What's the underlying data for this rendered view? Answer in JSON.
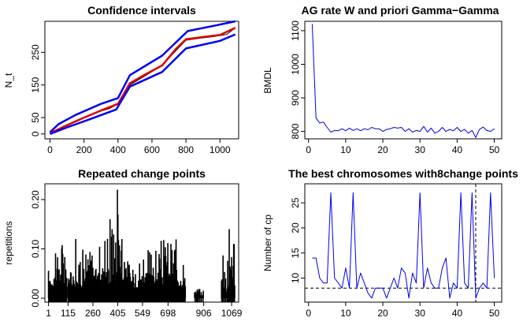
{
  "chart_data": [
    {
      "id": "ci",
      "type": "line",
      "title": "Confidence intervals",
      "xlabel": "",
      "ylabel": "N_t",
      "xlim": [
        -30,
        1110
      ],
      "ylim": [
        -15,
        345
      ],
      "xticks": [
        0,
        200,
        400,
        600,
        800,
        1000
      ],
      "yticks": [
        0,
        50,
        150,
        250
      ],
      "series": [
        {
          "name": "upper",
          "color": "#0000ee",
          "width": 2.5,
          "x": [
            0,
            50,
            150,
            300,
            400,
            470,
            660,
            810,
            1000,
            1090
          ],
          "y": [
            5,
            30,
            58,
            92,
            110,
            180,
            240,
            315,
            335,
            345
          ]
        },
        {
          "name": "observed",
          "color": "#000000",
          "width": 1,
          "x": [
            0,
            60,
            150,
            250,
            350,
            400,
            470,
            560,
            660,
            750,
            800,
            880,
            960,
            1040,
            1090
          ],
          "y": [
            0,
            18,
            40,
            62,
            78,
            92,
            150,
            178,
            210,
            260,
            287,
            293,
            298,
            305,
            325
          ]
        },
        {
          "name": "estimate",
          "color": "#dd0000",
          "width": 2.5,
          "x": [
            0,
            80,
            200,
            320,
            400,
            470,
            560,
            660,
            740,
            800,
            900,
            1000,
            1090
          ],
          "y": [
            2,
            22,
            50,
            76,
            92,
            155,
            182,
            210,
            260,
            290,
            297,
            303,
            325
          ]
        },
        {
          "name": "lower",
          "color": "#0000ee",
          "width": 2.5,
          "x": [
            0,
            100,
            250,
            390,
            470,
            660,
            800,
            1000,
            1090
          ],
          "y": [
            0,
            20,
            48,
            75,
            145,
            190,
            262,
            285,
            305
          ]
        }
      ]
    },
    {
      "id": "ag",
      "type": "line",
      "title": "AG rate W and priori Gamma−Gamma",
      "xlabel": "",
      "ylabel": "BMDL",
      "xlim": [
        -1,
        52
      ],
      "ylim": [
        778,
        1128
      ],
      "xticks": [
        0,
        10,
        20,
        30,
        40,
        50
      ],
      "yticks": [
        800,
        900,
        1000,
        1100
      ],
      "series": [
        {
          "name": "BMDL",
          "color": "#0000ee",
          "width": 1,
          "x": [
            1,
            2,
            3,
            4,
            5,
            6,
            7,
            8,
            9,
            10,
            11,
            12,
            13,
            14,
            15,
            16,
            17,
            18,
            19,
            20,
            21,
            22,
            23,
            24,
            25,
            26,
            27,
            28,
            29,
            30,
            31,
            32,
            33,
            34,
            35,
            36,
            37,
            38,
            39,
            40,
            41,
            42,
            43,
            44,
            45,
            46,
            47,
            48,
            49,
            50
          ],
          "y": [
            1120,
            840,
            825,
            828,
            812,
            798,
            803,
            802,
            808,
            802,
            810,
            803,
            808,
            802,
            808,
            805,
            812,
            808,
            808,
            800,
            806,
            808,
            812,
            810,
            812,
            800,
            808,
            798,
            803,
            800,
            815,
            798,
            810,
            795,
            800,
            812,
            800,
            806,
            802,
            812,
            800,
            806,
            795,
            803,
            782,
            806,
            813,
            803,
            800,
            808
          ]
        }
      ]
    },
    {
      "id": "rcp",
      "type": "bar",
      "title": "Repeated change points",
      "xlabel": "",
      "ylabel": "repetitions",
      "xlim": [
        -20,
        1110
      ],
      "ylim": [
        -0.008,
        0.232
      ],
      "yticks": [
        0.0,
        0.1,
        0.2
      ],
      "yticklabels": [
        "0.00",
        "0.10",
        "0.20"
      ],
      "xticks": [
        1,
        115,
        260,
        405,
        549,
        698,
        906,
        1069
      ],
      "note": "bar heights generated from profile segments"
    },
    {
      "id": "best",
      "type": "line",
      "title": "The best chromosomes with8change points",
      "xlabel": "",
      "ylabel": "Number of cp",
      "xlim": [
        -1,
        52
      ],
      "ylim": [
        5.2,
        28.8
      ],
      "xticks": [
        0,
        10,
        20,
        30,
        40,
        50
      ],
      "yticks": [
        10,
        15,
        20,
        25
      ],
      "hline": 8,
      "vline": 45,
      "series": [
        {
          "name": "cp",
          "color": "#0000ee",
          "width": 1,
          "x": [
            1,
            2,
            3,
            4,
            5,
            6,
            7,
            8,
            9,
            10,
            11,
            12,
            13,
            14,
            15,
            16,
            17,
            18,
            19,
            20,
            21,
            22,
            23,
            24,
            25,
            26,
            27,
            28,
            29,
            30,
            31,
            32,
            33,
            34,
            35,
            36,
            37,
            38,
            39,
            40,
            41,
            42,
            43,
            44,
            45,
            46,
            47,
            48,
            49,
            50
          ],
          "y": [
            14,
            14,
            10,
            9,
            9,
            27,
            10,
            9,
            8,
            12,
            8,
            27,
            8,
            11,
            9,
            7,
            6,
            8,
            8,
            8,
            6,
            8,
            10,
            8,
            12,
            11,
            6,
            11,
            9,
            27,
            8,
            12,
            9,
            8,
            8,
            12,
            14,
            6,
            9,
            8,
            27,
            9,
            8,
            27,
            6,
            8,
            9,
            8,
            27,
            10
          ]
        }
      ]
    }
  ]
}
